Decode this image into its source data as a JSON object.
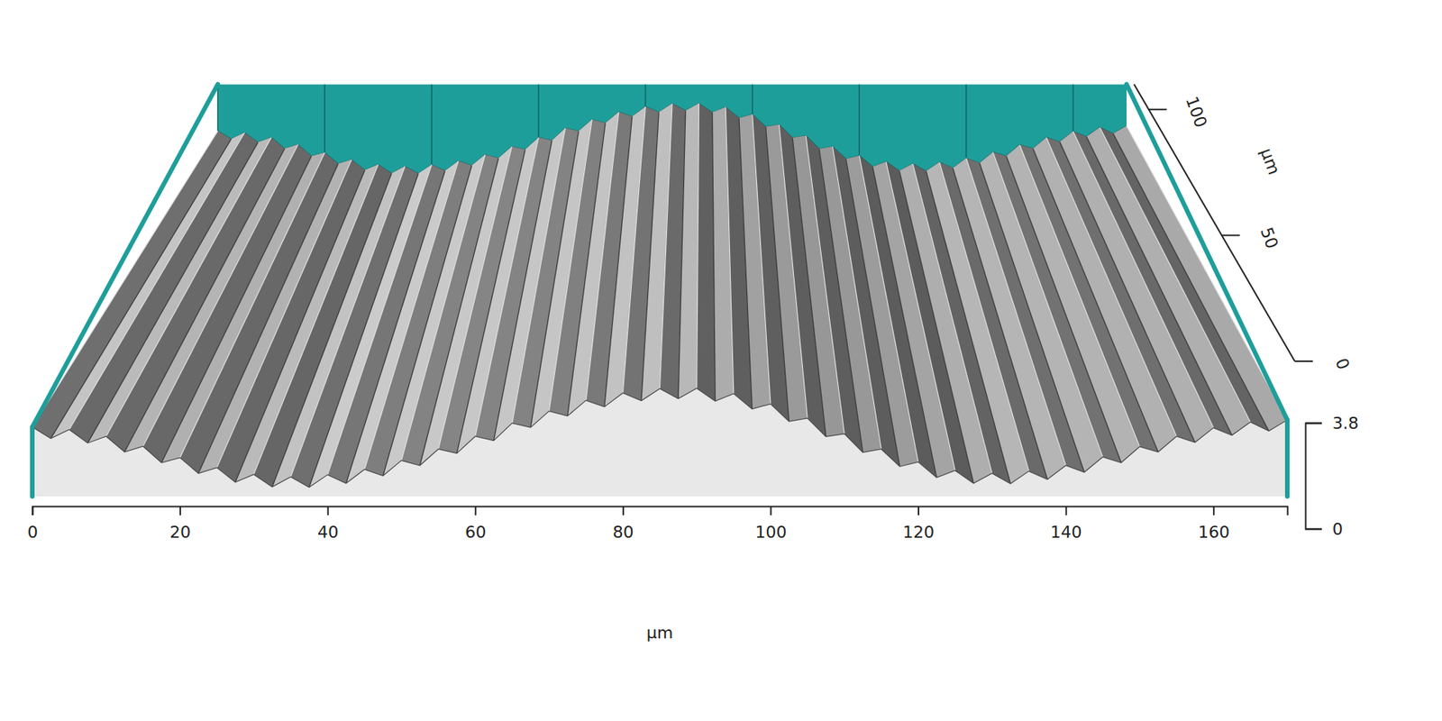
{
  "chart_data": {
    "type": "surface",
    "x_label": "µm",
    "y_label": "µm",
    "x": [
      0,
      2.5,
      5,
      7.5,
      10,
      12.5,
      15,
      17.5,
      20,
      22.5,
      25,
      27.5,
      30,
      32.5,
      35,
      37.5,
      40,
      42.5,
      45,
      47.5,
      50,
      52.5,
      55,
      57.5,
      60,
      62.5,
      65,
      67.5,
      70,
      72.5,
      75,
      77.5,
      80,
      82.5,
      85,
      87.5,
      90,
      92.5,
      95,
      97.5,
      100,
      102.5,
      105,
      107.5,
      110,
      112.5,
      115,
      117.5,
      120,
      122.5,
      125,
      127.5,
      130,
      132.5,
      135,
      137.5,
      140,
      142.5,
      145,
      147.5,
      150,
      152.5,
      155,
      157.5,
      160,
      162.5,
      165,
      167.5,
      170
    ],
    "values": [
      1.95,
      1.63,
      1.88,
      1.5,
      1.69,
      1.25,
      1.41,
      0.95,
      1.09,
      0.65,
      0.81,
      0.4,
      0.62,
      0.27,
      0.55,
      0.26,
      0.61,
      0.37,
      0.76,
      0.58,
      1.01,
      0.87,
      1.33,
      1.21,
      1.69,
      1.57,
      2.06,
      1.94,
      2.4,
      2.26,
      2.7,
      2.52,
      2.91,
      2.69,
      3.03,
      2.75,
      3.04,
      2.68,
      2.89,
      2.46,
      2.6,
      2.11,
      2.2,
      1.68,
      1.76,
      1.24,
      1.33,
      0.84,
      0.97,
      0.53,
      0.73,
      0.37,
      0.65,
      0.36,
      0.71,
      0.48,
      0.87,
      0.68,
      1.11,
      0.95,
      1.4,
      1.25,
      1.69,
      1.52,
      1.93,
      1.72,
      2.09,
      1.84,
      2.15
    ],
    "xlim": [
      0,
      170
    ],
    "xticks": [
      0,
      20,
      40,
      60,
      80,
      100,
      120,
      140,
      160
    ],
    "ylim": [
      0,
      110
    ],
    "yticks": [
      0,
      50,
      100
    ],
    "zlim": [
      0,
      3.8
    ],
    "zticks": [
      0,
      3.8
    ],
    "color": "#1e9e9a",
    "grid": true
  }
}
